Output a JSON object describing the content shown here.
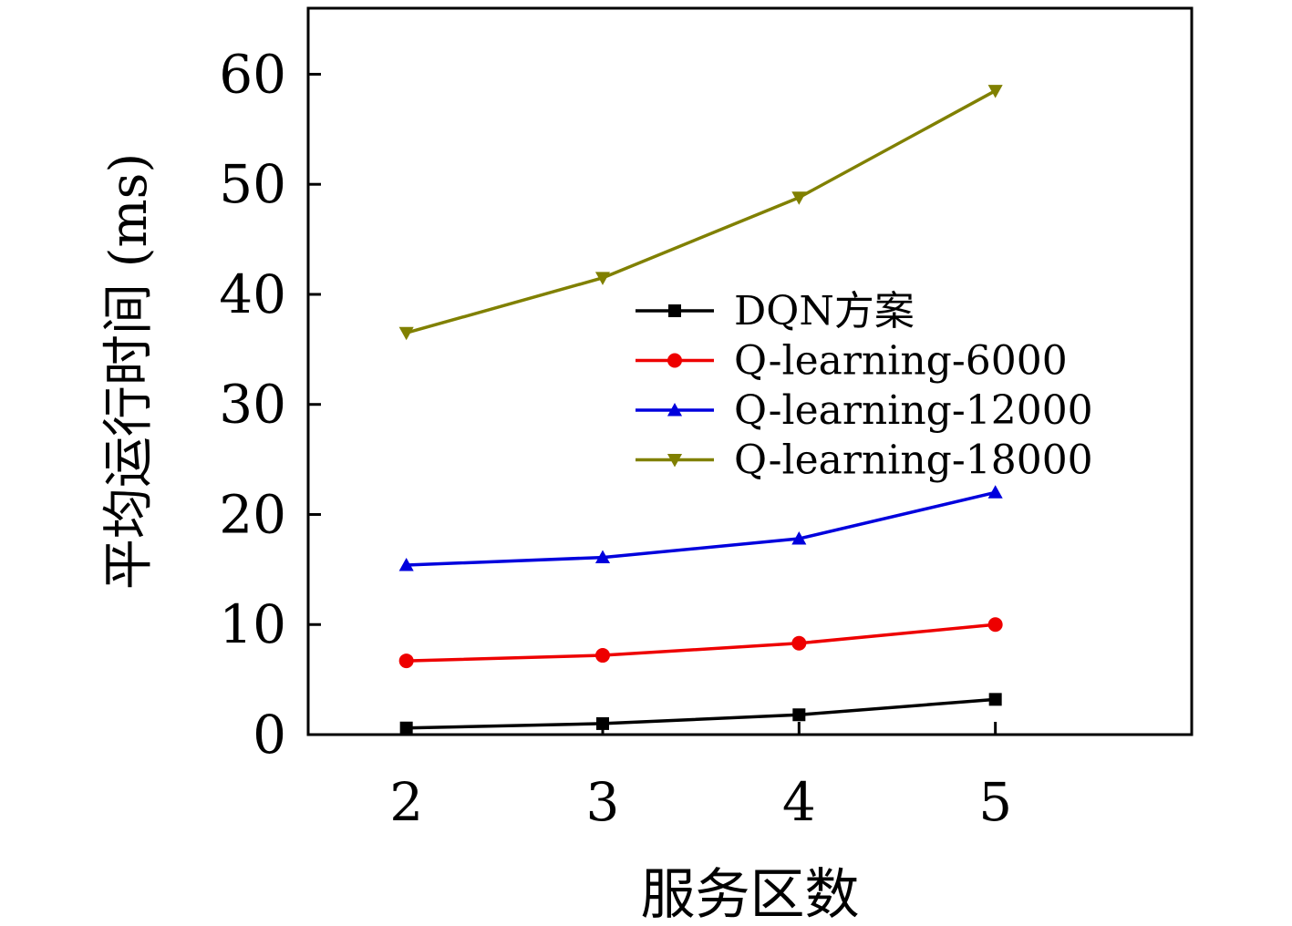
{
  "chart_data": {
    "type": "line",
    "xlabel": "服务区数",
    "ylabel": "平均运行时间 (ms)",
    "x": [
      2,
      3,
      4,
      5
    ],
    "x_ticks": [
      "2",
      "3",
      "4",
      "5"
    ],
    "y_ticks": [
      "0",
      "10",
      "20",
      "30",
      "40",
      "50",
      "60"
    ],
    "ylim": [
      0,
      66
    ],
    "xlim": [
      1.5,
      6
    ],
    "legend_position": "center-right",
    "series": [
      {
        "name": "DQN方案",
        "color": "#000000",
        "marker": "square",
        "values": [
          0.6,
          1.0,
          1.8,
          3.2
        ]
      },
      {
        "name": "Q-learning-6000",
        "color": "#ee0000",
        "marker": "circle",
        "values": [
          6.7,
          7.2,
          8.3,
          10.0
        ]
      },
      {
        "name": "Q-learning-12000",
        "color": "#0000dd",
        "marker": "triangle-up",
        "values": [
          15.4,
          16.1,
          17.8,
          22.0
        ]
      },
      {
        "name": "Q-learning-18000",
        "color": "#808000",
        "marker": "triangle-down",
        "values": [
          36.5,
          41.5,
          48.8,
          58.5
        ]
      }
    ]
  }
}
